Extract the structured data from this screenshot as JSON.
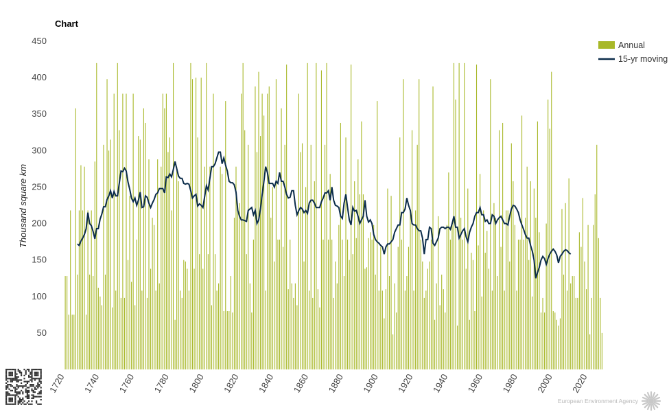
{
  "chart_data": {
    "type": "bar",
    "title": "Chart",
    "ylabel": "Thousand square km",
    "ylim": [
      0,
      450
    ],
    "yticks": [
      50,
      100,
      150,
      200,
      250,
      300,
      350,
      400,
      450
    ],
    "xlim": [
      1720,
      2020
    ],
    "xticks": [
      1720,
      1740,
      1760,
      1780,
      1800,
      1820,
      1840,
      1860,
      1880,
      1900,
      1920,
      1940,
      1960,
      1980,
      2000,
      2020
    ],
    "legend": {
      "placement": "top-right",
      "entries": [
        "Annual",
        "15-yr moving"
      ]
    },
    "colors": {
      "annual": "#a8b828",
      "moving": "#0b2c4a"
    },
    "credit": "European Environment Agency",
    "series": [
      {
        "name": "Annual",
        "type": "bar",
        "start_year": 1722,
        "values": [
          128,
          128,
          75,
          218,
          75,
          75,
          358,
          130,
          218,
          280,
          218,
          278,
          75,
          218,
          130,
          218,
          128,
          285,
          420,
          112,
          100,
          88,
          308,
          130,
          398,
          300,
          315,
          85,
          378,
          108,
          420,
          328,
          98,
          378,
          98,
          378,
          150,
          238,
          120,
          378,
          88,
          178,
          320,
          315,
          108,
          358,
          338,
          98,
          288,
          138,
          208,
          198,
          108,
          288,
          118,
          278,
          378,
          358,
          378,
          298,
          318,
          218,
          420,
          68,
          278,
          258,
          108,
          98,
          150,
          148,
          138,
          108,
          420,
          398,
          138,
          400,
          318,
          158,
          400,
          138,
          278,
          420,
          158,
          278,
          88,
          378,
          158,
          108,
          118,
          278,
          268,
          80,
          368,
          80,
          80,
          128,
          78,
          208,
          278,
          218,
          228,
          378,
          420,
          328,
          158,
          308,
          118,
          78,
          178,
          388,
          298,
          408,
          320,
          378,
          348,
          108,
          378,
          388,
          208,
          250,
          148,
          398,
          178,
          178,
          358,
          168,
          308,
          418,
          110,
          178,
          118,
          98,
          118,
          88,
          378,
          298,
          310,
          148,
          250,
          420,
          108,
          308,
          98,
          258,
          420,
          110,
          85,
          410,
          178,
          308,
          420,
          178,
          268,
          178,
          98,
          148,
          118,
          198,
          338,
          178,
          128,
          318,
          178,
          150,
          418,
          158,
          258,
          180,
          288,
          240,
          340,
          240,
          138,
          140,
          180,
          188,
          178,
          198,
          130,
          368,
          108,
          168,
          108,
          70,
          110,
          248,
          128,
          238,
          48,
          118,
          78,
          168,
          318,
          178,
          398,
          108,
          128,
          168,
          218,
          328,
          108,
          218,
          308,
          398,
          178,
          148,
          98,
          108,
          138,
          148,
          178,
          388,
          68,
          118,
          210,
          88,
          130,
          110,
          78,
          198,
          270,
          178,
          200,
          420,
          370,
          60,
          420,
          208,
          178,
          420,
          138,
          248,
          68,
          160,
          150,
          80,
          418,
          170,
          268,
          100,
          218,
          160,
          190,
          138,
          398,
          108,
          228,
          208,
          128,
          328,
          168,
          338,
          108,
          218,
          218,
          148,
          310,
          258,
          198,
          108,
          178,
          178,
          348,
          178,
          208,
          278,
          150,
          258,
          100,
          248,
          208,
          340,
          188,
          78,
          98,
          78,
          200,
          370,
          330,
          408,
          80,
          78,
          68,
          60,
          70,
          220,
          130,
          228,
          108,
          262,
          118,
          128,
          128,
          98,
          98,
          188,
          168,
          235,
          148,
          110,
          198,
          48,
          98,
          198,
          240,
          308,
          180,
          98,
          50
        ]
      },
      {
        "name": "15-yr moving",
        "type": "line",
        "start_year": 1729,
        "values": [
          172,
          170,
          176,
          180,
          185,
          193,
          215,
          200,
          197,
          189,
          179,
          193,
          193,
          206,
          213,
          223,
          223,
          233,
          238,
          245,
          235,
          244,
          238,
          238,
          255,
          272,
          271,
          276,
          272,
          257,
          247,
          235,
          230,
          235,
          225,
          232,
          243,
          222,
          223,
          238,
          236,
          228,
          222,
          228,
          233,
          240,
          242,
          248,
          248,
          248,
          242,
          264,
          263,
          268,
          264,
          274,
          285,
          275,
          265,
          262,
          262,
          255,
          254,
          255,
          254,
          245,
          235,
          238,
          240,
          224,
          227,
          225,
          222,
          237,
          252,
          246,
          262,
          278,
          278,
          282,
          290,
          298,
          298,
          282,
          290,
          280,
          272,
          258,
          256,
          256,
          253,
          243,
          218,
          210,
          205,
          205,
          204,
          203,
          218,
          220,
          222,
          212,
          218,
          200,
          205,
          220,
          240,
          258,
          278,
          270,
          255,
          255,
          255,
          250,
          258,
          255,
          270,
          258,
          258,
          250,
          240,
          235,
          236,
          245,
          245,
          225,
          212,
          218,
          222,
          220,
          215,
          218,
          214,
          228,
          232,
          232,
          228,
          222,
          222,
          222,
          230,
          235,
          242,
          242,
          245,
          232,
          250,
          232,
          225,
          224,
          222,
          210,
          207,
          228,
          240,
          222,
          205,
          198,
          222,
          217,
          218,
          210,
          200,
          205,
          210,
          232,
          210,
          202,
          205,
          200,
          185,
          178,
          175,
          173,
          170,
          168,
          158,
          168,
          172,
          172,
          175,
          178,
          188,
          193,
          198,
          198,
          215,
          215,
          220,
          235,
          225,
          218,
          200,
          198,
          198,
          193,
          190,
          190,
          180,
          158,
          178,
          178,
          195,
          193,
          173,
          170,
          175,
          180,
          193,
          195,
          195,
          193,
          195,
          195,
          192,
          200,
          210,
          195,
          195,
          180,
          185,
          190,
          193,
          182,
          175,
          188,
          195,
          200,
          210,
          215,
          215,
          222,
          212,
          212,
          203,
          205,
          200,
          200,
          212,
          210,
          200,
          205,
          208,
          210,
          205,
          200,
          200,
          198,
          210,
          220,
          225,
          224,
          220,
          215,
          205,
          198,
          192,
          185,
          180,
          180,
          170,
          162,
          150,
          125,
          133,
          140,
          150,
          155,
          152,
          144,
          152,
          158,
          162,
          165,
          162,
          157,
          146,
          155,
          158,
          162,
          164,
          163,
          160,
          158
        ]
      }
    ]
  }
}
